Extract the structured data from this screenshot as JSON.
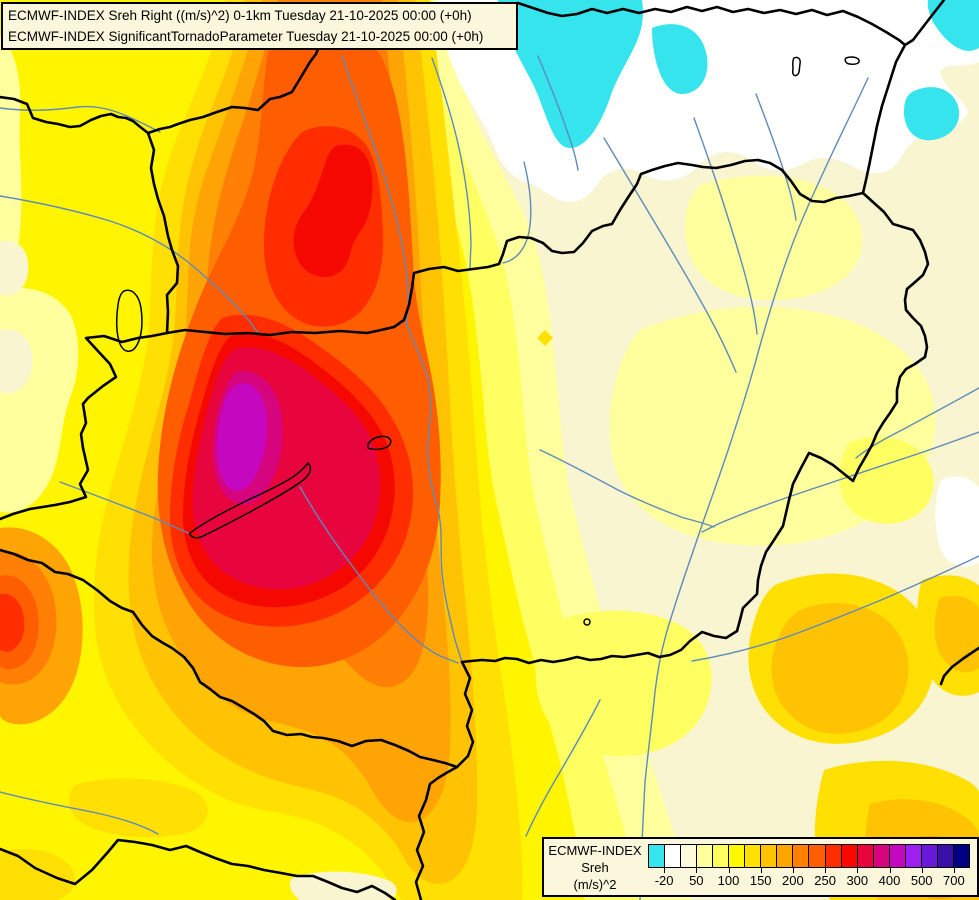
{
  "title_box": {
    "line1": "ECMWF-INDEX Sreh Right ((m/s)^2) 0-1km Tuesday 21-10-2025 00:00 (+0h)",
    "line2": "ECMWF-INDEX SignificantTornadoParameter Tuesday 21-10-2025 00:00 (+0h)"
  },
  "legend": {
    "source_label": "ECMWF-INDEX",
    "parameter_label": "Sreh",
    "units_label": "(m/s)^2",
    "tick_labels": [
      "-20",
      "50",
      "100",
      "150",
      "200",
      "250",
      "300",
      "400",
      "500",
      "700"
    ],
    "colors": [
      "#35E4EC",
      "#FFFFFF",
      "#FDFBDC",
      "#FFFF9E",
      "#FFFF60",
      "#FFF800",
      "#FFE100",
      "#FFC300",
      "#FFA500",
      "#FF8000",
      "#FF5E00",
      "#FF2D00",
      "#F80800",
      "#E8043C",
      "#D6057E",
      "#C607C0",
      "#9E1FF0",
      "#6A18D8",
      "#3A10A8",
      "#000080"
    ]
  },
  "map_colors": {
    "border": "#000000",
    "river": "#5E8ABD",
    "background": "#F8F5D0",
    "cyan_low": "#35E4EC",
    "magenta_peak": "#C607C0"
  }
}
